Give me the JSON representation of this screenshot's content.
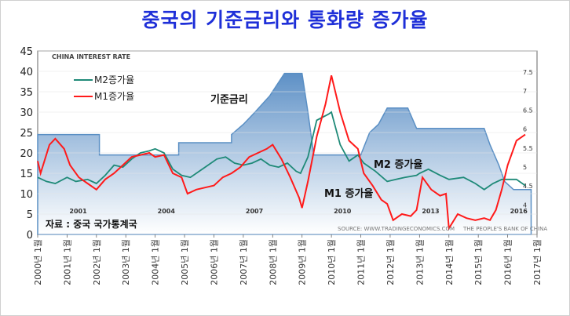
{
  "chart_data": {
    "type": "line",
    "title": "중국의 기준금리와 통화량 증가율",
    "inner_label": "CHINA INTEREST RATE",
    "source_note": "자료 : 중국 국가통계국",
    "watermark_left": "SOURCE: WWW.TRADINGECONOMICS.COM",
    "watermark_right": "THE PEOPLE'S BANK OF CHINA",
    "ylim": [
      0,
      45
    ],
    "y_ticks": [
      "45",
      "40",
      "35",
      "30",
      "25",
      "20",
      "15",
      "10",
      "5",
      "0"
    ],
    "y2_ticks": [
      "7.5",
      "7",
      "6.5",
      "6",
      "5.5",
      "5",
      "4.5",
      "4"
    ],
    "x_ticks": [
      "2000년 1월",
      "2001년 1월",
      "2002년 1월",
      "2003년 1월",
      "2004년 1월",
      "2005년 1월",
      "2006년 1월",
      "2007년 1월",
      "2008년 1월",
      "2009년 1월",
      "2010년 1월",
      "2011년 1월",
      "2012년 1월",
      "2013년 1월",
      "2014년 1월",
      "2015년 1월",
      "2016년 1월",
      "2017년 1월"
    ],
    "inner_year_labels": [
      "2001",
      "2004",
      "2007",
      "2010",
      "2013",
      "2016"
    ],
    "annotations": {
      "rate": "기준금리",
      "m1": "M1 증가율",
      "m2": "M2 증가율"
    },
    "legend": [
      {
        "name": "M2증가율",
        "color": "#1f8a78"
      },
      {
        "name": "M1증가율",
        "color": "#ff1a1a"
      }
    ],
    "series": [
      {
        "name": "M2증가율",
        "color": "#1f8a78",
        "points": [
          [
            2000.0,
            14
          ],
          [
            2000.3,
            13
          ],
          [
            2000.6,
            12.5
          ],
          [
            2001.0,
            14
          ],
          [
            2001.3,
            13
          ],
          [
            2001.7,
            13.5
          ],
          [
            2002.0,
            12.5
          ],
          [
            2002.3,
            14.5
          ],
          [
            2002.6,
            17
          ],
          [
            2002.9,
            16.5
          ],
          [
            2003.2,
            18.5
          ],
          [
            2003.5,
            20
          ],
          [
            2003.8,
            20.5
          ],
          [
            2004.0,
            21
          ],
          [
            2004.3,
            20
          ],
          [
            2004.6,
            16
          ],
          [
            2004.9,
            14.5
          ],
          [
            2005.2,
            14
          ],
          [
            2005.5,
            15.5
          ],
          [
            2005.8,
            17
          ],
          [
            2006.1,
            18.5
          ],
          [
            2006.4,
            19
          ],
          [
            2006.7,
            17.5
          ],
          [
            2007.0,
            17
          ],
          [
            2007.3,
            17.5
          ],
          [
            2007.6,
            18.5
          ],
          [
            2007.9,
            17
          ],
          [
            2008.2,
            16.5
          ],
          [
            2008.5,
            17.5
          ],
          [
            2008.8,
            15.5
          ],
          [
            2008.95,
            15
          ],
          [
            2009.2,
            19
          ],
          [
            2009.5,
            28
          ],
          [
            2009.9,
            29.5
          ],
          [
            2010.0,
            30
          ],
          [
            2010.3,
            22
          ],
          [
            2010.6,
            18
          ],
          [
            2010.9,
            19.5
          ],
          [
            2011.1,
            17.5
          ],
          [
            2011.5,
            15.5
          ],
          [
            2011.9,
            13
          ],
          [
            2012.2,
            13.5
          ],
          [
            2012.5,
            14
          ],
          [
            2012.9,
            14.5
          ],
          [
            2013.0,
            15
          ],
          [
            2013.3,
            16
          ],
          [
            2013.7,
            14.5
          ],
          [
            2014.0,
            13.5
          ],
          [
            2014.5,
            14
          ],
          [
            2014.9,
            12.5
          ],
          [
            2015.2,
            11
          ],
          [
            2015.5,
            12.5
          ],
          [
            2015.8,
            13.5
          ],
          [
            2016.0,
            13.5
          ],
          [
            2016.3,
            13.5
          ],
          [
            2016.6,
            12
          ]
        ]
      },
      {
        "name": "M1증가율",
        "color": "#ff1a1a",
        "points": [
          [
            2000.0,
            18
          ],
          [
            2000.1,
            15
          ],
          [
            2000.4,
            22
          ],
          [
            2000.6,
            23.5
          ],
          [
            2000.9,
            21
          ],
          [
            2001.1,
            17
          ],
          [
            2001.4,
            14
          ],
          [
            2001.7,
            12.5
          ],
          [
            2002.0,
            11
          ],
          [
            2002.3,
            13.5
          ],
          [
            2002.6,
            15
          ],
          [
            2002.9,
            17
          ],
          [
            2003.2,
            19
          ],
          [
            2003.5,
            19.5
          ],
          [
            2003.8,
            20
          ],
          [
            2004.0,
            19
          ],
          [
            2004.3,
            19.5
          ],
          [
            2004.6,
            15
          ],
          [
            2004.9,
            14
          ],
          [
            2005.1,
            10
          ],
          [
            2005.4,
            11
          ],
          [
            2005.7,
            11.5
          ],
          [
            2006.0,
            12
          ],
          [
            2006.3,
            14
          ],
          [
            2006.6,
            15
          ],
          [
            2006.9,
            16.5
          ],
          [
            2007.2,
            19
          ],
          [
            2007.5,
            20
          ],
          [
            2007.8,
            21
          ],
          [
            2008.0,
            22
          ],
          [
            2008.3,
            18.5
          ],
          [
            2008.6,
            14
          ],
          [
            2008.9,
            9
          ],
          [
            2009.0,
            6.5
          ],
          [
            2009.2,
            13
          ],
          [
            2009.5,
            24
          ],
          [
            2009.8,
            32
          ],
          [
            2010.0,
            39
          ],
          [
            2010.3,
            30
          ],
          [
            2010.6,
            23
          ],
          [
            2010.9,
            21
          ],
          [
            2011.1,
            15
          ],
          [
            2011.4,
            12
          ],
          [
            2011.7,
            8.5
          ],
          [
            2011.9,
            7.5
          ],
          [
            2012.1,
            3.5
          ],
          [
            2012.4,
            5
          ],
          [
            2012.7,
            4.5
          ],
          [
            2012.9,
            6
          ],
          [
            2013.1,
            14
          ],
          [
            2013.4,
            11
          ],
          [
            2013.7,
            9.5
          ],
          [
            2013.9,
            10
          ],
          [
            2014.0,
            1.5
          ],
          [
            2014.3,
            5
          ],
          [
            2014.6,
            4
          ],
          [
            2014.9,
            3.5
          ],
          [
            2015.2,
            4
          ],
          [
            2015.4,
            3.5
          ],
          [
            2015.6,
            6
          ],
          [
            2015.8,
            11
          ],
          [
            2016.0,
            17
          ],
          [
            2016.3,
            23
          ],
          [
            2016.6,
            24.5
          ]
        ]
      },
      {
        "name": "기준금리",
        "color": "#5a8fc4",
        "points": [
          [
            2000.0,
            24.5
          ],
          [
            2002.1,
            24.5
          ],
          [
            2002.1,
            19.5
          ],
          [
            2004.8,
            19.5
          ],
          [
            2004.8,
            22.5
          ],
          [
            2006.6,
            22.5
          ],
          [
            2006.6,
            24.5
          ],
          [
            2007.0,
            27
          ],
          [
            2007.4,
            30
          ],
          [
            2007.9,
            34
          ],
          [
            2008.4,
            39.5
          ],
          [
            2009.0,
            39.5
          ],
          [
            2009.2,
            30
          ],
          [
            2009.4,
            19.5
          ],
          [
            2011.0,
            19.5
          ],
          [
            2011.3,
            25
          ],
          [
            2011.6,
            27
          ],
          [
            2011.9,
            31
          ],
          [
            2012.6,
            31
          ],
          [
            2012.9,
            26
          ],
          [
            2015.2,
            26
          ],
          [
            2015.4,
            22
          ],
          [
            2015.7,
            17
          ],
          [
            2015.9,
            13
          ],
          [
            2016.2,
            11
          ],
          [
            2016.8,
            11
          ]
        ]
      }
    ]
  }
}
